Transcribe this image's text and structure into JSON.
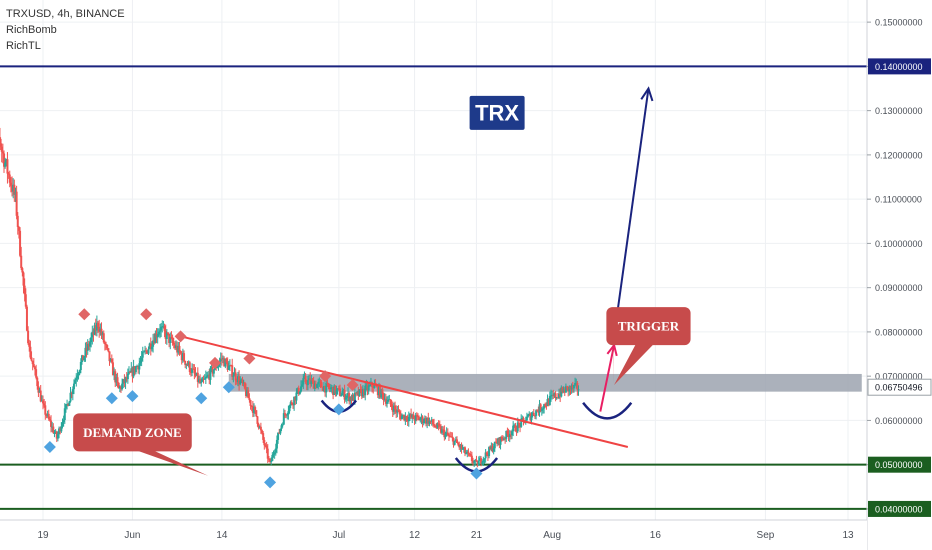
{
  "header": {
    "symbol_line": "TRXUSD, 4h, BINANCE",
    "indicators": [
      "RichBomb",
      "RichTL"
    ]
  },
  "colors": {
    "up": "#26a69a",
    "down": "#ef5350",
    "trendline": "#ef4444",
    "zone": "#9ca3af",
    "support": "#1b5e20",
    "resistance": "#1a237e",
    "projection": "#1a237e",
    "trigger_arrow": "#e91e63",
    "label_bg": "#c74b4b",
    "trx_bg": "#1e3a8a",
    "bullish_marker": "#4fa3e0",
    "bearish_marker": "#e06666"
  },
  "chart_data": {
    "type": "candlestick",
    "symbol": "TRXUSD",
    "timeframe": "4h",
    "exchange": "BINANCE",
    "x_ticks": [
      "19",
      "Jun",
      "14",
      "Jul",
      "12",
      "21",
      "Aug",
      "16",
      "Sep",
      "13"
    ],
    "x_tick_dates": [
      "2020-05-19",
      "2020-06-01",
      "2020-06-14",
      "2020-07-01",
      "2020-07-12",
      "2020-07-21",
      "2020-08-01",
      "2020-08-16",
      "2020-09-01",
      "2020-09-13"
    ],
    "y_ticks": [
      "0.15000000",
      "0.14000000",
      "0.13000000",
      "0.12000000",
      "0.11000000",
      "0.10000000",
      "0.09000000",
      "0.08000000",
      "0.07000000",
      "0.06000000",
      "0.05000000",
      "0.04000000"
    ],
    "y_tick_values": [
      0.15,
      0.14,
      0.13,
      0.12,
      0.11,
      0.1,
      0.09,
      0.08,
      0.07,
      0.06,
      0.05,
      0.04
    ],
    "ylim": [
      0.0375,
      0.155
    ],
    "current_price": 0.06750496,
    "current_price_label": "0.06750496",
    "highlighted_levels": [
      {
        "value": 0.14,
        "label": "0.14000000",
        "kind": "resistance"
      },
      {
        "value": 0.05,
        "label": "0.05000000",
        "kind": "support"
      },
      {
        "value": 0.04,
        "label": "0.04000000",
        "kind": "support"
      }
    ],
    "price_path": [
      {
        "date": "2020-05-11",
        "price": 0.14
      },
      {
        "date": "2020-05-13",
        "price": 0.121
      },
      {
        "date": "2020-05-15",
        "price": 0.11
      },
      {
        "date": "2020-05-17",
        "price": 0.076
      },
      {
        "date": "2020-05-19",
        "price": 0.063
      },
      {
        "date": "2020-05-21",
        "price": 0.056
      },
      {
        "date": "2020-05-24",
        "price": 0.071
      },
      {
        "date": "2020-05-27",
        "price": 0.082
      },
      {
        "date": "2020-05-30",
        "price": 0.067
      },
      {
        "date": "2020-06-02",
        "price": 0.073
      },
      {
        "date": "2020-06-05",
        "price": 0.081
      },
      {
        "date": "2020-06-08",
        "price": 0.075
      },
      {
        "date": "2020-06-11",
        "price": 0.068
      },
      {
        "date": "2020-06-14",
        "price": 0.074
      },
      {
        "date": "2020-06-17",
        "price": 0.068
      },
      {
        "date": "2020-06-19",
        "price": 0.061
      },
      {
        "date": "2020-06-21",
        "price": 0.05
      },
      {
        "date": "2020-06-23",
        "price": 0.061
      },
      {
        "date": "2020-06-26",
        "price": 0.069
      },
      {
        "date": "2020-06-30",
        "price": 0.067
      },
      {
        "date": "2020-07-03",
        "price": 0.065
      },
      {
        "date": "2020-07-06",
        "price": 0.068
      },
      {
        "date": "2020-07-10",
        "price": 0.061
      },
      {
        "date": "2020-07-14",
        "price": 0.06
      },
      {
        "date": "2020-07-18",
        "price": 0.055
      },
      {
        "date": "2020-07-21",
        "price": 0.05
      },
      {
        "date": "2020-07-24",
        "price": 0.055
      },
      {
        "date": "2020-07-28",
        "price": 0.06
      },
      {
        "date": "2020-08-01",
        "price": 0.065
      },
      {
        "date": "2020-08-03",
        "price": 0.067
      },
      {
        "date": "2020-08-05",
        "price": 0.0675
      }
    ],
    "bullish_markers": [
      {
        "date": "2020-05-20",
        "price": 0.054
      },
      {
        "date": "2020-05-29",
        "price": 0.065
      },
      {
        "date": "2020-06-01",
        "price": 0.0655
      },
      {
        "date": "2020-06-11",
        "price": 0.065
      },
      {
        "date": "2020-06-15",
        "price": 0.0675
      },
      {
        "date": "2020-06-21",
        "price": 0.046
      },
      {
        "date": "2020-07-01",
        "price": 0.0625
      },
      {
        "date": "2020-07-21",
        "price": 0.048
      }
    ],
    "bearish_markers": [
      {
        "date": "2020-05-25",
        "price": 0.084
      },
      {
        "date": "2020-06-03",
        "price": 0.084
      },
      {
        "date": "2020-06-08",
        "price": 0.079
      },
      {
        "date": "2020-06-13",
        "price": 0.073
      },
      {
        "date": "2020-06-18",
        "price": 0.074
      },
      {
        "date": "2020-06-29",
        "price": 0.07
      },
      {
        "date": "2020-07-03",
        "price": 0.068
      }
    ],
    "drawings": {
      "trendline": {
        "from": {
          "date": "2020-06-08",
          "price": 0.079
        },
        "to": {
          "date": "2020-08-12",
          "price": 0.054
        }
      },
      "resistance_zone": {
        "from_date": "2020-06-15",
        "to_date": "2020-09-15",
        "low": 0.0665,
        "high": 0.0705
      },
      "projection_arrow": {
        "from": {
          "date": "2020-08-10",
          "price": 0.079
        },
        "to": {
          "date": "2020-08-15",
          "price": 0.135
        }
      },
      "trigger_arrow": {
        "from": {
          "date": "2020-08-08",
          "price": 0.062
        },
        "to": {
          "date": "2020-08-10",
          "price": 0.077
        }
      },
      "arcs": [
        {
          "center_date": "2020-07-01",
          "center_price": 0.0645,
          "width_days": 5
        },
        {
          "center_date": "2020-07-21",
          "center_price": 0.0515,
          "width_days": 6
        },
        {
          "center_date": "2020-08-09",
          "center_price": 0.064,
          "width_days": 7
        }
      ]
    },
    "annotations": [
      {
        "text": "TRX",
        "date": "2020-07-24",
        "price": 0.1295,
        "style": "badge-blue"
      },
      {
        "text": "TRIGGER",
        "date": "2020-08-15",
        "price": 0.0813,
        "style": "callout-red",
        "pointer": {
          "date": "2020-08-10",
          "price": 0.068
        }
      },
      {
        "text": "DEMAND ZONE",
        "date": "2020-06-01",
        "price": 0.0573,
        "style": "callout-red",
        "pointer": {
          "date": "2020-06-12",
          "price": 0.0475
        }
      }
    ]
  }
}
